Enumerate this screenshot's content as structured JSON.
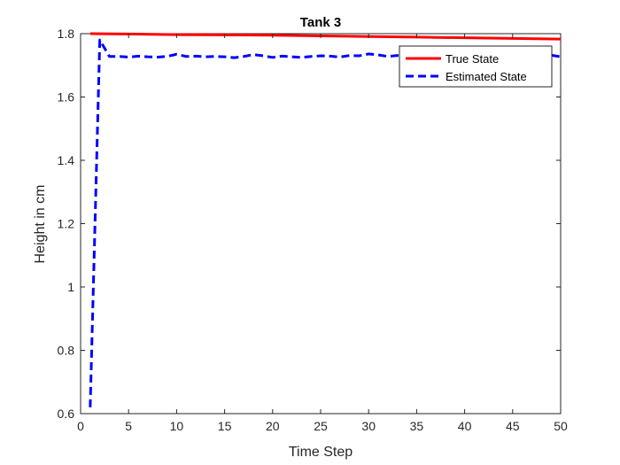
{
  "chart_data": {
    "type": "line",
    "title": "Tank 3",
    "xlabel": "Time Step",
    "ylabel": "Height in cm",
    "xlim": [
      0,
      50
    ],
    "ylim": [
      0.6,
      1.8
    ],
    "xticks": [
      0,
      5,
      10,
      15,
      20,
      25,
      30,
      35,
      40,
      45,
      50
    ],
    "yticks": [
      0.6,
      0.8,
      1,
      1.2,
      1.4,
      1.6,
      1.8
    ],
    "xtick_labels": [
      "0",
      "5",
      "10",
      "15",
      "20",
      "25",
      "30",
      "35",
      "40",
      "45",
      "50"
    ],
    "ytick_labels": [
      "0.6",
      "0.8",
      "1",
      "1.2",
      "1.4",
      "1.6",
      "1.8"
    ],
    "grid": false,
    "legend_position": "top-right",
    "series": [
      {
        "name": "True State",
        "color": "#ff0000",
        "style": "solid",
        "x": [
          1,
          5,
          10,
          15,
          20,
          25,
          30,
          35,
          40,
          45,
          50
        ],
        "y": [
          1.8,
          1.799,
          1.797,
          1.796,
          1.795,
          1.793,
          1.791,
          1.789,
          1.787,
          1.785,
          1.783
        ]
      },
      {
        "name": "Estimated State",
        "color": "#0000ff",
        "style": "dashed",
        "x": [
          1,
          2,
          3,
          4,
          5,
          6,
          7,
          8,
          9,
          10,
          11,
          12,
          13,
          14,
          15,
          16,
          17,
          18,
          19,
          20,
          21,
          22,
          23,
          24,
          25,
          26,
          27,
          28,
          29,
          30,
          31,
          32,
          33,
          34,
          35,
          36,
          37,
          38,
          39,
          40,
          41,
          42,
          43,
          44,
          45,
          46,
          47,
          48,
          49,
          50
        ],
        "y": [
          0.62,
          1.78,
          1.728,
          1.728,
          1.726,
          1.729,
          1.727,
          1.726,
          1.728,
          1.735,
          1.728,
          1.729,
          1.727,
          1.728,
          1.727,
          1.724,
          1.728,
          1.734,
          1.73,
          1.725,
          1.729,
          1.727,
          1.725,
          1.728,
          1.73,
          1.729,
          1.726,
          1.731,
          1.73,
          1.736,
          1.733,
          1.728,
          1.731,
          1.73,
          1.729,
          1.731,
          1.73,
          1.729,
          1.731,
          1.73,
          1.729,
          1.73,
          1.731,
          1.729,
          1.73,
          1.731,
          1.73,
          1.729,
          1.732,
          1.727
        ]
      }
    ]
  }
}
